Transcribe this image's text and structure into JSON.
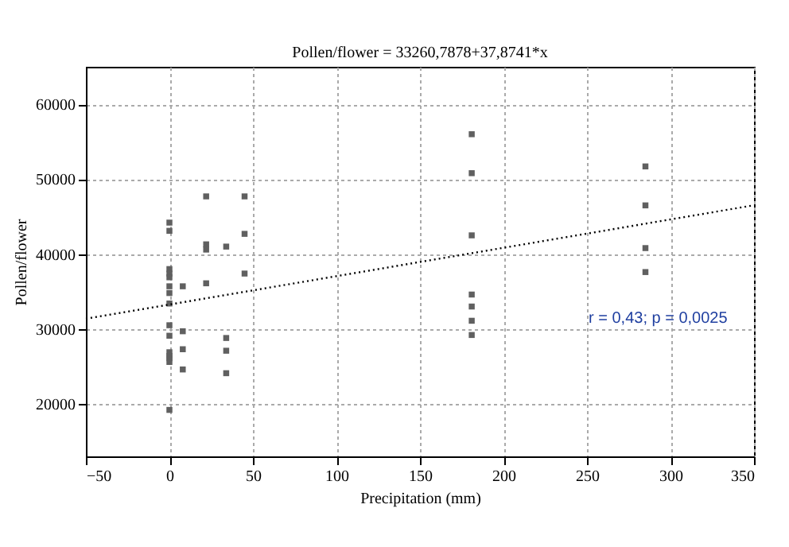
{
  "chart_data": {
    "type": "scatter",
    "title": "Pollen/flower = 33260,7878+37,8741*x",
    "xlabel": "Precipitation (mm)",
    "ylabel": "Pollen/flower",
    "xlim": [
      -50,
      350
    ],
    "xticks": [
      -50,
      0,
      50,
      100,
      150,
      200,
      250,
      300,
      350
    ],
    "ylim": [
      13000,
      65000
    ],
    "yticks": [
      20000,
      30000,
      40000,
      50000,
      60000
    ],
    "grid": true,
    "series": [
      {
        "color": "#606060",
        "marker": "square",
        "x": [
          0,
          0,
          0,
          0,
          0,
          0,
          0,
          0,
          0,
          0,
          0,
          0,
          0,
          0,
          0,
          8,
          8,
          8,
          8,
          22,
          22,
          22,
          22,
          34,
          34,
          34,
          34,
          45,
          45,
          45,
          181,
          181,
          181,
          181,
          181,
          181,
          181,
          285,
          285,
          285,
          285
        ],
        "values": [
          44200,
          43100,
          38000,
          37400,
          36900,
          35700,
          34800,
          33400,
          30500,
          29100,
          26900,
          26400,
          26100,
          25600,
          19200,
          35700,
          29700,
          27300,
          24600,
          47700,
          41300,
          40600,
          36100,
          41000,
          28800,
          27100,
          24100,
          47700,
          42700,
          37400,
          56000,
          50800,
          42500,
          34600,
          33000,
          31100,
          29200,
          51700,
          46500,
          40800,
          37600
        ]
      },
      {
        "type": "line",
        "color": "#000000",
        "line_style": "dotted",
        "marker": "none",
        "x": [
          -50,
          350
        ],
        "values": [
          31370,
          46520
        ]
      }
    ],
    "annotations": [
      "r = 0,43; p = 0,0025"
    ]
  }
}
